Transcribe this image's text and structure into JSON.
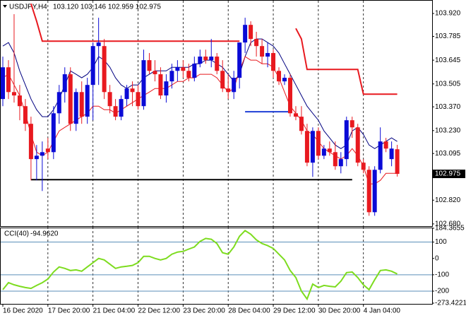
{
  "chart_data": [
    {
      "type": "candlestick",
      "title": "USDJPY,H4",
      "ohlc_label": "103.120 103.146 102.959 102.975",
      "categories": [
        "16 Dec 2020",
        null,
        null,
        null,
        null,
        null,
        null,
        null,
        "17 Dec 20:00",
        null,
        null,
        null,
        null,
        null,
        null,
        null,
        "21 Dec 04:00",
        null,
        null,
        null,
        null,
        null,
        null,
        null,
        "22 Dec 12:00",
        null,
        null,
        null,
        null,
        null,
        null,
        null,
        "23 Dec 20:00",
        null,
        null,
        null,
        null,
        null,
        null,
        null,
        "28 Dec 04:00",
        null,
        null,
        null,
        null,
        null,
        null,
        null,
        "29 Dec 12:00",
        null,
        null,
        null,
        null,
        null,
        null,
        null,
        "30 Dec 20:00",
        null,
        null,
        null,
        null,
        null,
        null,
        null,
        "4 Jan 04:00",
        null,
        null,
        null,
        null,
        null,
        null
      ],
      "open": [
        103.416,
        103.603,
        103.457,
        103.437,
        103.374,
        103.27,
        103.062,
        103.082,
        103.124,
        103.103,
        103.332,
        103.457,
        103.562,
        103.27,
        103.457,
        103.312,
        103.499,
        103.728,
        103.728,
        103.457,
        103.374,
        103.312,
        103.416,
        103.478,
        103.457,
        103.374,
        103.645,
        103.582,
        103.562,
        103.437,
        103.52,
        103.582,
        103.603,
        103.582,
        103.541,
        103.624,
        103.666,
        103.645,
        103.666,
        103.582,
        103.478,
        103.457,
        103.541,
        103.749,
        103.853,
        103.77,
        103.728,
        103.666,
        103.687,
        103.582,
        103.52,
        103.541,
        103.332,
        103.312,
        103.228,
        103.041,
        103.228,
        103.082,
        103.124,
        103.103,
        103.02,
        103.062,
        103.291,
        103.249,
        103.041,
        102.999,
        102.749,
        102.999,
        103.166,
        103.062,
        103.12
      ],
      "high": [
        103.666,
        103.645,
        103.916,
        103.499,
        103.416,
        103.312,
        103.145,
        103.166,
        103.187,
        103.374,
        103.499,
        103.603,
        103.603,
        103.478,
        103.52,
        103.541,
        103.749,
        103.895,
        103.77,
        103.499,
        103.416,
        103.437,
        103.499,
        103.52,
        103.499,
        103.707,
        103.687,
        103.645,
        103.603,
        103.562,
        103.624,
        103.645,
        103.645,
        103.624,
        103.666,
        103.707,
        103.707,
        103.77,
        103.687,
        103.645,
        103.562,
        103.582,
        103.749,
        103.895,
        103.874,
        103.812,
        103.77,
        103.749,
        103.707,
        103.603,
        103.562,
        103.562,
        103.374,
        103.374,
        103.27,
        103.249,
        103.249,
        103.145,
        103.166,
        103.166,
        103.103,
        103.312,
        103.312,
        103.27,
        103.062,
        103.02,
        103.02,
        103.249,
        103.187,
        103.166,
        103.146
      ],
      "low": [
        103.374,
        103.416,
        103.395,
        103.291,
        103.228,
        102.937,
        102.937,
        102.874,
        103.062,
        103.062,
        103.27,
        103.395,
        103.228,
        103.228,
        103.27,
        103.27,
        103.291,
        103.499,
        103.416,
        103.332,
        103.291,
        103.291,
        103.374,
        103.374,
        103.353,
        103.353,
        103.562,
        103.52,
        103.416,
        103.395,
        103.478,
        103.52,
        103.541,
        103.52,
        103.52,
        103.603,
        103.624,
        103.603,
        103.562,
        103.457,
        103.416,
        103.416,
        103.478,
        103.687,
        103.728,
        103.666,
        103.624,
        103.603,
        103.541,
        103.499,
        103.499,
        103.312,
        103.291,
        103.207,
        103.02,
        102.957,
        103.062,
        103.062,
        103.082,
        102.999,
        102.978,
        103.02,
        103.187,
        103.02,
        102.978,
        102.728,
        102.728,
        102.978,
        103.103,
        103.02,
        102.959
      ],
      "close": [
        103.603,
        103.457,
        103.437,
        103.374,
        103.27,
        103.062,
        103.082,
        103.103,
        103.103,
        103.332,
        103.457,
        103.562,
        103.27,
        103.457,
        103.312,
        103.499,
        103.728,
        103.749,
        103.457,
        103.374,
        103.312,
        103.416,
        103.478,
        103.457,
        103.374,
        103.645,
        103.582,
        103.562,
        103.437,
        103.52,
        103.582,
        103.603,
        103.582,
        103.541,
        103.624,
        103.666,
        103.645,
        103.666,
        103.582,
        103.478,
        103.457,
        103.541,
        103.749,
        103.853,
        103.77,
        103.728,
        103.666,
        103.687,
        103.582,
        103.52,
        103.541,
        103.332,
        103.312,
        103.228,
        103.041,
        103.228,
        103.082,
        103.124,
        103.103,
        103.02,
        103.062,
        103.291,
        103.249,
        103.041,
        102.999,
        102.749,
        102.999,
        103.166,
        103.124,
        103.124,
        102.975
      ],
      "up_color": "#0a0ad6",
      "down_color": "#e8191f",
      "overlays": [
        {
          "color": "#000080",
          "width": 1,
          "values": [
            103.728,
            103.749,
            103.687,
            103.582,
            103.499,
            103.416,
            103.353,
            103.312,
            103.312,
            103.353,
            103.416,
            103.499,
            103.582,
            103.562,
            103.541,
            103.562,
            103.603,
            103.666,
            103.645,
            103.603,
            103.541,
            103.499,
            103.478,
            103.499,
            103.499,
            103.541,
            103.562,
            103.582,
            103.582,
            103.582,
            103.603,
            103.603,
            103.603,
            103.603,
            103.624,
            103.624,
            103.645,
            103.645,
            103.624,
            103.603,
            103.562,
            103.52,
            103.562,
            103.666,
            103.749,
            103.77,
            103.77,
            103.749,
            103.728,
            103.687,
            103.624,
            103.562,
            103.499,
            103.437,
            103.374,
            103.332,
            103.291,
            103.228,
            103.187,
            103.145,
            103.124,
            103.145,
            103.228,
            103.249,
            103.207,
            103.145,
            103.124,
            103.145,
            103.166,
            103.187,
            103.166
          ]
        },
        {
          "color": "#e8191f",
          "width": 1,
          "values": [
            103.541,
            103.562,
            103.499,
            103.437,
            103.332,
            103.207,
            103.103,
            103.082,
            103.103,
            103.166,
            103.228,
            103.249,
            103.27,
            103.291,
            103.312,
            103.332,
            103.374,
            103.374,
            103.353,
            103.353,
            103.332,
            103.353,
            103.374,
            103.395,
            103.416,
            103.437,
            103.457,
            103.478,
            103.478,
            103.478,
            103.499,
            103.52,
            103.52,
            103.541,
            103.541,
            103.562,
            103.562,
            103.562,
            103.541,
            103.499,
            103.457,
            103.478,
            103.582,
            103.666,
            103.645,
            103.645,
            103.624,
            103.624,
            103.603,
            103.541,
            103.457,
            103.374,
            103.332,
            103.291,
            103.228,
            103.207,
            103.166,
            103.124,
            103.103,
            103.082,
            103.062,
            103.082,
            103.124,
            103.082,
            103.02,
            102.916,
            102.916,
            102.937,
            102.978,
            102.978,
            102.978
          ]
        },
        {
          "color": "#e8191f",
          "width": 2,
          "values": [
            null,
            null,
            null,
            null,
            null,
            103.978,
            103.874,
            103.757,
            103.757,
            103.757,
            103.757,
            103.757,
            103.757,
            103.757,
            103.757,
            103.757,
            103.757,
            103.757,
            103.757,
            103.757,
            103.757,
            103.757,
            103.757,
            103.757,
            103.757,
            103.757,
            103.757,
            103.757,
            103.757,
            103.757,
            103.757,
            103.757,
            103.757,
            103.757,
            103.757,
            103.757,
            103.757,
            103.757,
            103.757,
            103.757,
            103.757,
            103.757,
            103.757,
            null,
            null,
            null,
            null,
            null,
            null,
            null,
            null,
            null,
            103.832,
            103.77,
            103.59,
            103.59,
            103.59,
            103.59,
            103.59,
            103.59,
            103.59,
            103.59,
            103.59,
            103.59,
            103.445,
            103.445,
            103.445,
            103.445,
            103.445,
            103.445,
            103.445
          ]
        },
        {
          "color": "#000000",
          "width": 2,
          "values": [
            null,
            null,
            null,
            null,
            null,
            102.941,
            102.941,
            102.941,
            102.941,
            102.941,
            102.941,
            102.941,
            102.941,
            102.941,
            102.941,
            102.941,
            102.941,
            102.941,
            102.941,
            102.941,
            102.941,
            102.941,
            102.941,
            102.941,
            102.941,
            102.941,
            102.941,
            102.941,
            102.941,
            102.941,
            102.941,
            102.941,
            102.941,
            102.941,
            102.941,
            102.941,
            102.941,
            102.941,
            102.941,
            102.941,
            102.941,
            102.941,
            102.941,
            102.941,
            102.941,
            102.941,
            102.941,
            102.941,
            102.941,
            102.941,
            102.941,
            102.941,
            102.941,
            102.941,
            102.941,
            102.941,
            102.941,
            102.941,
            102.941,
            102.941,
            102.941,
            102.941,
            102.941,
            null,
            null,
            null,
            null,
            null,
            null,
            null,
            null
          ]
        },
        {
          "color": "#1f3fd6",
          "width": 2,
          "values": [
            null,
            null,
            null,
            null,
            null,
            null,
            null,
            null,
            null,
            null,
            null,
            null,
            null,
            null,
            null,
            null,
            null,
            null,
            null,
            null,
            null,
            null,
            null,
            null,
            null,
            null,
            null,
            null,
            null,
            null,
            null,
            null,
            null,
            null,
            null,
            null,
            null,
            null,
            null,
            null,
            null,
            null,
            null,
            103.341,
            103.341,
            103.341,
            103.341,
            103.341,
            103.341,
            103.341,
            103.341,
            103.341,
            null,
            null,
            null,
            null,
            null,
            null,
            null,
            null,
            null,
            null,
            null,
            null,
            null,
            null,
            null,
            null,
            null,
            null,
            null
          ]
        }
      ],
      "last_price": {
        "value": 102.975,
        "label": "102.975"
      },
      "ylim": [
        102.667,
        103.987
      ],
      "yticks": [
        {
          "value": 103.92,
          "label": "103.920"
        },
        103.785,
        103.645,
        103.505,
        {
          "value": 103.37,
          "label": "103.370"
        },
        {
          "value": 103.23,
          "label": "103.230"
        },
        103.095,
        {
          "value": 102.82,
          "label": "102.820"
        },
        {
          "value": 102.68,
          "label": "102.680"
        }
      ],
      "grid": true
    },
    {
      "type": "line",
      "title": "CCI(40)",
      "current": {
        "value": -94.962,
        "label": "-94.9620"
      },
      "color": "#7ddc1f",
      "values": [
        -191,
        -148,
        -161,
        -170,
        -178,
        -183,
        -165,
        -148,
        -126,
        -83,
        -52,
        -61,
        -74,
        -70,
        -78,
        -52,
        -26,
        0,
        -9,
        -35,
        -61,
        -52,
        -48,
        -43,
        -26,
        13,
        13,
        0,
        -9,
        0,
        26,
        39,
        43,
        57,
        70,
        104,
        122,
        117,
        91,
        35,
        26,
        70,
        135,
        170,
        148,
        113,
        91,
        78,
        61,
        26,
        -9,
        -74,
        -117,
        -200,
        -248,
        -157,
        -178,
        -165,
        -170,
        -174,
        -139,
        -87,
        -83,
        -117,
        -161,
        -191,
        -130,
        -74,
        -70,
        -78,
        -94.962
      ],
      "levels": [
        100,
        -100,
        -200
      ],
      "level_color": "#5b8fb9",
      "ylim": [
        -273.4221,
        184.3655
      ],
      "yticks": [
        184.3655,
        100,
        0,
        -100,
        -200,
        -273.4221
      ]
    }
  ]
}
